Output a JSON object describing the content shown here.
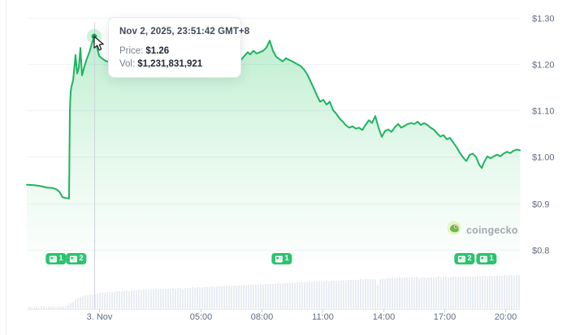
{
  "tooltip": {
    "time": "Nov 2, 2025, 23:51:42 GMT+8",
    "price_label": "Price:",
    "price_value": "$1.26",
    "vol_label": "Vol:",
    "vol_value": "$1,231,831,921"
  },
  "watermark": {
    "text": "coingecko"
  },
  "colors": {
    "line": "#1db45f",
    "fill": "#22c55e",
    "badge": "#2bc46d",
    "grid": "#f0f3f6",
    "axis_line": "#e7ebee",
    "tick": "#cdd4da",
    "axis_text": "#5e6c7f",
    "volume_bar": "#e9edf2",
    "crosshair": "#ccd3da",
    "marker_dot": "#17a35b",
    "marker_halo": "rgba(34,197,94,0.22)"
  },
  "chart_data": {
    "type": "area",
    "x_axis": {
      "unit": "hours relative to 3. Nov 00:00",
      "range": [
        -3.56,
        20.75
      ],
      "ticks": [
        {
          "t": 0,
          "label": "3. Nov"
        },
        {
          "t": 5,
          "label": "05:00"
        },
        {
          "t": 8,
          "label": "08:00"
        },
        {
          "t": 11,
          "label": "11:00"
        },
        {
          "t": 14,
          "label": "14:00"
        },
        {
          "t": 17,
          "label": "17:00"
        },
        {
          "t": 20,
          "label": "20:00"
        }
      ]
    },
    "y_axis": {
      "unit": "USD",
      "range": [
        0.768,
        1.315
      ],
      "ticks": [
        {
          "value": 1.3,
          "label": "$1.30"
        },
        {
          "value": 1.2,
          "label": "$1.20"
        },
        {
          "value": 1.1,
          "label": "$1.10"
        },
        {
          "value": 1.0,
          "label": "$1.00"
        },
        {
          "value": 0.9,
          "label": "$0.9"
        },
        {
          "value": 0.8,
          "label": "$0.8"
        }
      ]
    },
    "series": [
      {
        "name": "price_usd",
        "points": [
          [
            -3.56,
            0.94
          ],
          [
            -3.2,
            0.939
          ],
          [
            -2.9,
            0.937
          ],
          [
            -2.6,
            0.934
          ],
          [
            -2.3,
            0.933
          ],
          [
            -2.1,
            0.93
          ],
          [
            -1.95,
            0.924
          ],
          [
            -1.8,
            0.913
          ],
          [
            -1.6,
            0.911
          ],
          [
            -1.48,
            0.91
          ],
          [
            -1.44,
            1.1
          ],
          [
            -1.4,
            1.141
          ],
          [
            -1.36,
            1.152
          ],
          [
            -1.28,
            1.165
          ],
          [
            -1.16,
            1.22
          ],
          [
            -1.08,
            1.18
          ],
          [
            -1.0,
            1.192
          ],
          [
            -0.92,
            1.235
          ],
          [
            -0.84,
            1.176
          ],
          [
            -0.72,
            1.196
          ],
          [
            -0.6,
            1.212
          ],
          [
            -0.48,
            1.226
          ],
          [
            -0.36,
            1.244
          ],
          [
            -0.24,
            1.26
          ],
          [
            -0.12,
            1.24
          ],
          [
            0.0,
            1.218
          ],
          [
            0.16,
            1.212
          ],
          [
            0.32,
            1.207
          ],
          [
            0.7,
            1.203
          ],
          [
            1.1,
            1.21
          ],
          [
            1.5,
            1.198
          ],
          [
            1.9,
            1.205
          ],
          [
            2.3,
            1.2
          ],
          [
            2.7,
            1.196
          ],
          [
            3.1,
            1.202
          ],
          [
            3.5,
            1.199
          ],
          [
            3.9,
            1.204
          ],
          [
            4.3,
            1.198
          ],
          [
            4.7,
            1.203
          ],
          [
            5.1,
            1.199
          ],
          [
            5.5,
            1.201
          ],
          [
            5.9,
            1.197
          ],
          [
            6.3,
            1.203
          ],
          [
            6.6,
            1.2
          ],
          [
            6.92,
            1.206
          ],
          [
            7.12,
            1.216
          ],
          [
            7.32,
            1.226
          ],
          [
            7.44,
            1.221
          ],
          [
            7.6,
            1.229
          ],
          [
            7.76,
            1.223
          ],
          [
            7.92,
            1.226
          ],
          [
            8.08,
            1.229
          ],
          [
            8.24,
            1.236
          ],
          [
            8.4,
            1.251
          ],
          [
            8.56,
            1.229
          ],
          [
            8.72,
            1.216
          ],
          [
            8.88,
            1.211
          ],
          [
            9.04,
            1.206
          ],
          [
            9.2,
            1.213
          ],
          [
            9.36,
            1.209
          ],
          [
            9.52,
            1.206
          ],
          [
            9.72,
            1.201
          ],
          [
            9.92,
            1.196
          ],
          [
            10.08,
            1.189
          ],
          [
            10.24,
            1.179
          ],
          [
            10.4,
            1.164
          ],
          [
            10.56,
            1.149
          ],
          [
            10.72,
            1.133
          ],
          [
            10.88,
            1.119
          ],
          [
            11.04,
            1.123
          ],
          [
            11.2,
            1.113
          ],
          [
            11.36,
            1.119
          ],
          [
            11.52,
            1.101
          ],
          [
            11.68,
            1.093
          ],
          [
            11.84,
            1.083
          ],
          [
            12.0,
            1.076
          ],
          [
            12.16,
            1.068
          ],
          [
            12.32,
            1.063
          ],
          [
            12.48,
            1.066
          ],
          [
            12.64,
            1.061
          ],
          [
            12.8,
            1.063
          ],
          [
            12.96,
            1.058
          ],
          [
            13.12,
            1.069
          ],
          [
            13.28,
            1.079
          ],
          [
            13.44,
            1.073
          ],
          [
            13.6,
            1.088
          ],
          [
            13.76,
            1.063
          ],
          [
            13.92,
            1.043
          ],
          [
            14.08,
            1.056
          ],
          [
            14.24,
            1.059
          ],
          [
            14.4,
            1.054
          ],
          [
            14.56,
            1.064
          ],
          [
            14.72,
            1.071
          ],
          [
            14.88,
            1.063
          ],
          [
            15.04,
            1.067
          ],
          [
            15.2,
            1.071
          ],
          [
            15.36,
            1.073
          ],
          [
            15.52,
            1.071
          ],
          [
            15.68,
            1.076
          ],
          [
            15.84,
            1.069
          ],
          [
            16.0,
            1.073
          ],
          [
            16.16,
            1.069
          ],
          [
            16.32,
            1.063
          ],
          [
            16.48,
            1.059
          ],
          [
            16.64,
            1.051
          ],
          [
            16.8,
            1.044
          ],
          [
            16.96,
            1.047
          ],
          [
            17.12,
            1.038
          ],
          [
            17.28,
            1.041
          ],
          [
            17.44,
            1.031
          ],
          [
            17.6,
            1.021
          ],
          [
            17.76,
            1.009
          ],
          [
            17.92,
            0.999
          ],
          [
            18.08,
            0.991
          ],
          [
            18.24,
            1.004
          ],
          [
            18.4,
            1.007
          ],
          [
            18.56,
            1.0
          ],
          [
            18.72,
            0.983
          ],
          [
            18.84,
            0.976
          ],
          [
            18.96,
            0.989
          ],
          [
            19.12,
            1.001
          ],
          [
            19.28,
            0.997
          ],
          [
            19.44,
            1.001
          ],
          [
            19.6,
            1.005
          ],
          [
            19.76,
            1.001
          ],
          [
            19.92,
            1.007
          ],
          [
            20.08,
            1.011
          ],
          [
            20.24,
            1.008
          ],
          [
            20.4,
            1.013
          ],
          [
            20.56,
            1.016
          ],
          [
            20.72,
            1.014
          ]
        ]
      }
    ],
    "marker": {
      "t": -0.24,
      "price": 1.26
    },
    "events": [
      {
        "t": -2.12,
        "count": "1"
      },
      {
        "t": -1.12,
        "count": "2"
      },
      {
        "t": 9.0,
        "count": "1"
      },
      {
        "t": 18.0,
        "count": "2"
      },
      {
        "t": 19.08,
        "count": "1"
      }
    ],
    "volume_bars": {
      "unit": "relative height px (no axis shown)",
      "heights": [
        3,
        2,
        3,
        3,
        2,
        3,
        3,
        2,
        3,
        3,
        3,
        2,
        3,
        3,
        3,
        3,
        5,
        7,
        9,
        12,
        14,
        15,
        16,
        17,
        17,
        18,
        18,
        19,
        19,
        20,
        20,
        20,
        21,
        21,
        21,
        21,
        22,
        22,
        22,
        22,
        23,
        22,
        23,
        23,
        23,
        24,
        23,
        24,
        24,
        24,
        24,
        24,
        25,
        24,
        25,
        25,
        25,
        25,
        25,
        26,
        25,
        26,
        26,
        25,
        26,
        26,
        26,
        27,
        26,
        27,
        27,
        26,
        27,
        27,
        27,
        28,
        27,
        28,
        28,
        28,
        28,
        28,
        29,
        28,
        29,
        29,
        29,
        29,
        30,
        29,
        30,
        30,
        30,
        30,
        30,
        31,
        30,
        31,
        31,
        31,
        31,
        31,
        32,
        31,
        32,
        32,
        32,
        32,
        33,
        32,
        33,
        33,
        33,
        33,
        33,
        34,
        33,
        34,
        34,
        34,
        34,
        34,
        35,
        34,
        35,
        35,
        35,
        35,
        35,
        36,
        35,
        36,
        36,
        36,
        36,
        36,
        37,
        36,
        37,
        37,
        37,
        37,
        37,
        30,
        37,
        38,
        37,
        38,
        38,
        38,
        38,
        38,
        39,
        38,
        39,
        39,
        39,
        39,
        39,
        40,
        38,
        39,
        39,
        38,
        39,
        39,
        39,
        39,
        40,
        39,
        40,
        40,
        39,
        40,
        40,
        40,
        40,
        40,
        40,
        40,
        40,
        40,
        40,
        40,
        41,
        40,
        41,
        41,
        40,
        41,
        41,
        41,
        41,
        41,
        41,
        42,
        41,
        42,
        42,
        41,
        42,
        42
      ]
    }
  }
}
